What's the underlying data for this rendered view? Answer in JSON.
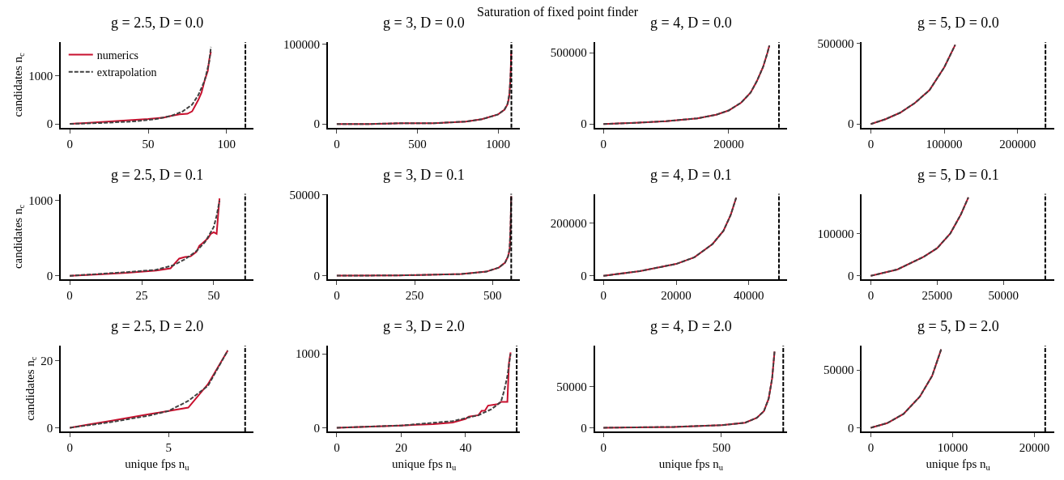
{
  "chart_data": [
    {
      "type": "line",
      "title": "g = 2.5, D = 0.0",
      "ylabel": "candidates n$_{c}$",
      "annotations": [
        "Saturation of fixed point finder"
      ],
      "legend": "top left",
      "xlim": [
        -5.8,
        117
      ],
      "xticks": [
        0,
        50,
        100
      ],
      "ylim": [
        -80,
        1700
      ],
      "yticks": [
        0,
        1000
      ],
      "ref_lines": [
        {
          "axis": "x",
          "value": 112,
          "color": "#000000",
          "line_style": "dashed"
        }
      ],
      "series": [
        {
          "name": "numerics",
          "color": "#c8102e",
          "x": [
            0,
            10,
            20,
            30,
            40,
            50,
            60,
            65,
            70,
            75,
            78,
            80,
            82,
            84,
            86,
            88,
            89,
            90
          ],
          "values": [
            0,
            20,
            40,
            60,
            80,
            100,
            130,
            170,
            200,
            210,
            260,
            380,
            500,
            650,
            900,
            1100,
            1350,
            1500
          ]
        },
        {
          "name": "extrapolation",
          "color": "#404040",
          "line_style": "dashed",
          "x": [
            0,
            20,
            40,
            55,
            65,
            72,
            78,
            82,
            86,
            89,
            90
          ],
          "values": [
            0,
            20,
            50,
            100,
            170,
            260,
            400,
            600,
            900,
            1300,
            1600
          ]
        }
      ]
    },
    {
      "type": "line",
      "title": "g = 3, D = 0.0",
      "xlim": [
        -56,
        1138
      ],
      "xticks": [
        0,
        500,
        1000
      ],
      "ylim": [
        -4700,
        103000
      ],
      "yticks": [
        0,
        100000
      ],
      "ref_lines": [
        {
          "axis": "x",
          "value": 1083,
          "color": "#000000",
          "line_style": "dashed"
        }
      ],
      "series": [
        {
          "color": "#c8102e",
          "x": [
            0,
            200,
            400,
            600,
            800,
            900,
            1000,
            1040,
            1060,
            1070,
            1078,
            1082
          ],
          "values": [
            0,
            0,
            1000,
            1000,
            3000,
            6000,
            12000,
            18000,
            25000,
            35000,
            60000,
            90000
          ]
        },
        {
          "color": "#404040",
          "line_style": "dashed",
          "x": [
            0,
            200,
            400,
            600,
            800,
            900,
            1000,
            1040,
            1060,
            1072,
            1080,
            1083
          ],
          "values": [
            0,
            0,
            1000,
            1000,
            3000,
            6000,
            12000,
            18000,
            26000,
            40000,
            70000,
            100000
          ]
        }
      ]
    },
    {
      "type": "line",
      "title": "g = 4, D = 0.0",
      "xlim": [
        -1390,
        29360
      ],
      "xticks": [
        0,
        20000
      ],
      "ylim": [
        -26000,
        574000
      ],
      "yticks": [
        0,
        500000
      ],
      "ref_lines": [
        {
          "axis": "x",
          "value": 28030,
          "color": "#000000",
          "line_style": "dashed"
        }
      ],
      "series": [
        {
          "color": "#c8102e",
          "x": [
            0,
            5000,
            10000,
            15000,
            18000,
            20000,
            22000,
            23500,
            24500,
            25500,
            26200,
            26500
          ],
          "values": [
            0,
            8000,
            20000,
            40000,
            65000,
            95000,
            150000,
            220000,
            300000,
            400000,
            500000,
            550000
          ]
        },
        {
          "color": "#404040",
          "line_style": "dashed",
          "x": [
            0,
            5000,
            10000,
            15000,
            18000,
            20000,
            22000,
            23500,
            24500,
            25500,
            26200,
            26500
          ],
          "values": [
            0,
            8000,
            20000,
            40000,
            65000,
            95000,
            150000,
            220000,
            300000,
            400000,
            500000,
            550000
          ]
        }
      ]
    },
    {
      "type": "line",
      "title": "g = 5, D = 0.0",
      "xlim": [
        -12300,
        250000
      ],
      "xticks": [
        0,
        100000,
        200000
      ],
      "ylim": [
        -23000,
        507000
      ],
      "yticks": [
        0,
        500000
      ],
      "ref_lines": [
        {
          "axis": "x",
          "value": 238000,
          "color": "#000000",
          "line_style": "dashed"
        }
      ],
      "series": [
        {
          "color": "#c8102e",
          "x": [
            0,
            20000,
            40000,
            60000,
            80000,
            100000,
            115000
          ],
          "values": [
            0,
            30000,
            70000,
            130000,
            210000,
            350000,
            490000
          ]
        },
        {
          "color": "#404040",
          "line_style": "dashed",
          "x": [
            0,
            20000,
            40000,
            60000,
            80000,
            100000,
            115000
          ],
          "values": [
            0,
            30000,
            70000,
            130000,
            210000,
            350000,
            490000
          ]
        }
      ]
    },
    {
      "type": "line",
      "title": "g = 2.5, D = 0.1",
      "ylabel": "candidates n$_{c}$",
      "xlim": [
        -3.1,
        63.7
      ],
      "xticks": [
        0,
        25,
        50
      ],
      "ylim": [
        -50,
        1090
      ],
      "yticks": [
        0,
        1000
      ],
      "ref_lines": [
        {
          "axis": "x",
          "value": 60.9,
          "color": "#000000",
          "line_style": "dashed"
        }
      ],
      "series": [
        {
          "color": "#c8102e",
          "x": [
            0,
            10,
            20,
            30,
            35,
            38,
            40,
            42,
            44,
            45,
            46,
            48,
            49,
            50,
            51,
            51.5,
            52
          ],
          "values": [
            0,
            20,
            40,
            70,
            100,
            230,
            250,
            260,
            320,
            400,
            430,
            500,
            560,
            580,
            560,
            800,
            1030
          ]
        },
        {
          "color": "#404040",
          "line_style": "dashed",
          "x": [
            0,
            20,
            30,
            36,
            40,
            44,
            47,
            50,
            51,
            52
          ],
          "values": [
            0,
            50,
            80,
            140,
            220,
            330,
            450,
            650,
            800,
            1000
          ]
        }
      ]
    },
    {
      "type": "line",
      "title": "g = 3, D = 0.1",
      "xlim": [
        -29,
        589
      ],
      "xticks": [
        0,
        250,
        500
      ],
      "ylim": [
        -2400,
        50500
      ],
      "yticks": [
        0,
        50000
      ],
      "ref_lines": [
        {
          "axis": "x",
          "value": 560,
          "color": "#000000",
          "line_style": "dashed"
        }
      ],
      "series": [
        {
          "color": "#c8102e",
          "x": [
            0,
            200,
            400,
            480,
            520,
            540,
            550,
            555,
            558,
            560
          ],
          "values": [
            0,
            200,
            1000,
            2500,
            5000,
            8000,
            12000,
            16000,
            30000,
            49000
          ]
        },
        {
          "color": "#404040",
          "line_style": "dashed",
          "x": [
            0,
            200,
            400,
            480,
            520,
            540,
            550,
            555,
            558,
            560
          ],
          "values": [
            0,
            200,
            1000,
            2500,
            5000,
            8000,
            12000,
            17000,
            32000,
            49000
          ]
        }
      ]
    },
    {
      "type": "line",
      "title": "g = 4, D = 0.1",
      "xlim": [
        -2390,
        50550
      ],
      "xticks": [
        0,
        20000,
        40000
      ],
      "ylim": [
        -14000,
        309000
      ],
      "yticks": [
        0,
        200000
      ],
      "ref_lines": [
        {
          "axis": "x",
          "value": 48260,
          "color": "#000000",
          "line_style": "dashed"
        }
      ],
      "series": [
        {
          "color": "#c8102e",
          "x": [
            0,
            10000,
            20000,
            25000,
            30000,
            33000,
            35000,
            36500
          ],
          "values": [
            0,
            18000,
            45000,
            70000,
            120000,
            170000,
            230000,
            295000
          ]
        },
        {
          "color": "#404040",
          "line_style": "dashed",
          "x": [
            0,
            10000,
            20000,
            25000,
            30000,
            33000,
            35000,
            36500
          ],
          "values": [
            0,
            18000,
            45000,
            70000,
            120000,
            170000,
            230000,
            295000
          ]
        }
      ]
    },
    {
      "type": "line",
      "title": "g = 5, D = 0.1",
      "xlim": [
        -3400,
        69200
      ],
      "xticks": [
        0,
        25000,
        50000
      ],
      "ylim": [
        -8800,
        193000
      ],
      "yticks": [
        0,
        100000
      ],
      "ref_lines": [
        {
          "axis": "x",
          "value": 65800,
          "color": "#000000",
          "line_style": "dashed"
        }
      ],
      "series": [
        {
          "color": "#c8102e",
          "x": [
            0,
            10000,
            20000,
            25000,
            30000,
            34000,
            36800
          ],
          "values": [
            0,
            15000,
            45000,
            65000,
            100000,
            145000,
            185000
          ]
        },
        {
          "color": "#404040",
          "line_style": "dashed",
          "x": [
            0,
            10000,
            20000,
            25000,
            30000,
            34000,
            36800
          ],
          "values": [
            0,
            15000,
            45000,
            65000,
            100000,
            145000,
            185000
          ]
        }
      ]
    },
    {
      "type": "line",
      "title": "g = 2.5, D = 2.0",
      "ylabel": "candidates n$_{c}$",
      "xlabel": "unique fps n$_{u}$",
      "xlim": [
        -0.46,
        9.29
      ],
      "xticks": [
        0,
        5
      ],
      "ylim": [
        -1.1,
        24.4
      ],
      "yticks": [
        0,
        20
      ],
      "ref_lines": [
        {
          "axis": "x",
          "value": 8.88,
          "color": "#000000",
          "line_style": "dashed"
        }
      ],
      "series": [
        {
          "color": "#c8102e",
          "x": [
            0,
            1,
            2,
            3,
            4,
            5,
            6,
            7,
            8
          ],
          "values": [
            0,
            1,
            2,
            3,
            4,
            5,
            6,
            13,
            23
          ]
        },
        {
          "color": "#404040",
          "line_style": "dashed",
          "x": [
            0,
            2,
            4,
            5,
            6,
            7,
            8
          ],
          "values": [
            0,
            1.6,
            3.6,
            5,
            8,
            12.5,
            23
          ]
        }
      ]
    },
    {
      "type": "line",
      "title": "g = 3, D = 2.0",
      "xlabel": "unique fps n$_{u}$",
      "xlim": [
        -2.8,
        57
      ],
      "xticks": [
        0,
        20,
        40
      ],
      "ylim": [
        -50,
        1110
      ],
      "yticks": [
        0,
        1000
      ],
      "ref_lines": [
        {
          "axis": "x",
          "value": 55.9,
          "color": "#000000",
          "line_style": "dashed"
        }
      ],
      "series": [
        {
          "color": "#c8102e",
          "x": [
            0,
            20,
            30,
            36,
            40,
            41,
            44,
            45,
            46,
            47,
            50,
            51,
            53,
            53.5,
            54
          ],
          "values": [
            0,
            30,
            50,
            70,
            120,
            150,
            170,
            230,
            230,
            300,
            320,
            350,
            350,
            880,
            1020
          ]
        },
        {
          "color": "#404040",
          "line_style": "dashed",
          "x": [
            0,
            20,
            36,
            44,
            48,
            51,
            52,
            53,
            54
          ],
          "values": [
            0,
            30,
            90,
            170,
            250,
            350,
            500,
            700,
            1000
          ]
        }
      ]
    },
    {
      "type": "line",
      "title": "g = 4, D = 2.0",
      "xlabel": "unique fps n$_{u}$",
      "xlim": [
        -37,
        779
      ],
      "xticks": [
        0,
        500
      ],
      "ylim": [
        -4500,
        99100
      ],
      "yticks": [
        0,
        50000
      ],
      "ref_lines": [
        {
          "axis": "x",
          "value": 762,
          "color": "#000000",
          "line_style": "dashed"
        }
      ],
      "series": [
        {
          "color": "#c8102e",
          "x": [
            0,
            300,
            500,
            600,
            650,
            680,
            700,
            715,
            725
          ],
          "values": [
            0,
            1000,
            3000,
            6000,
            12000,
            20000,
            35000,
            60000,
            92000
          ]
        },
        {
          "color": "#404040",
          "line_style": "dashed",
          "x": [
            0,
            300,
            500,
            600,
            650,
            680,
            700,
            715,
            725
          ],
          "values": [
            0,
            1000,
            3000,
            6000,
            12000,
            20000,
            35000,
            60000,
            92000
          ]
        }
      ]
    },
    {
      "type": "line",
      "title": "g = 5, D = 2.0",
      "xlabel": "unique fps n$_{u}$",
      "xlim": [
        -1100,
        22430
      ],
      "xticks": [
        0,
        10000,
        20000
      ],
      "ylim": [
        -3200,
        71100
      ],
      "yticks": [
        0,
        50000
      ],
      "ref_lines": [
        {
          "axis": "x",
          "value": 21320,
          "color": "#000000",
          "line_style": "dashed"
        }
      ],
      "series": [
        {
          "color": "#c8102e",
          "x": [
            0,
            2000,
            4000,
            6000,
            7500,
            8600
          ],
          "values": [
            0,
            4000,
            12000,
            27000,
            45000,
            68000
          ]
        },
        {
          "color": "#404040",
          "line_style": "dashed",
          "x": [
            0,
            2000,
            4000,
            6000,
            7500,
            8600
          ],
          "values": [
            0,
            4000,
            12000,
            27000,
            45000,
            68000
          ]
        }
      ]
    }
  ]
}
